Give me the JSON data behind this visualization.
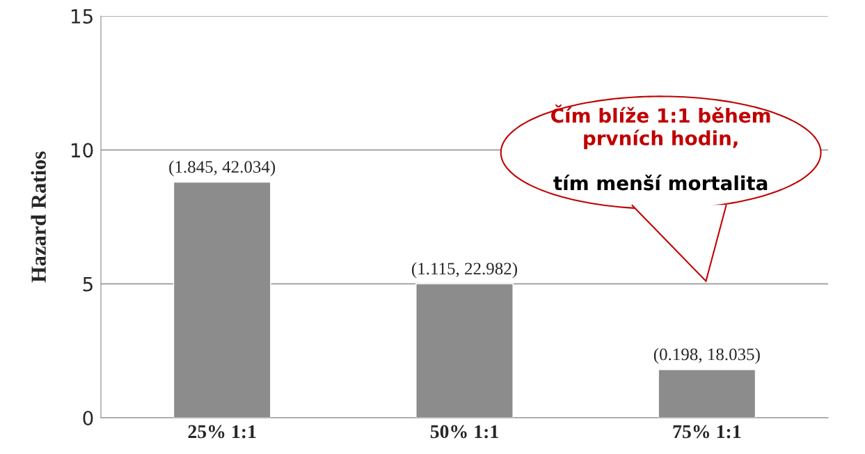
{
  "chart_data": {
    "type": "bar",
    "ylabel": "Hazard Ratios",
    "categories": [
      "25% 1:1",
      "50% 1:1",
      "75% 1:1"
    ],
    "values": [
      8.8,
      5.0,
      1.8
    ],
    "color": "#8c8c8c",
    "ylim": [
      0,
      15
    ],
    "yticks": [
      0,
      5,
      10,
      15
    ],
    "grid": "y",
    "annotations": [
      {
        "text": "(1.845, 42.034)",
        "x": "25% 1:1",
        "y": 8.8
      },
      {
        "text": "(1.115, 22.982)",
        "x": "50% 1:1",
        "y": 5.0
      },
      {
        "text": "(0.198, 18.035)",
        "x": "75% 1:1",
        "y": 1.8
      },
      "Čím blíže 1:1 během\nprvních hodin,",
      "tím menší mortalita"
    ]
  }
}
